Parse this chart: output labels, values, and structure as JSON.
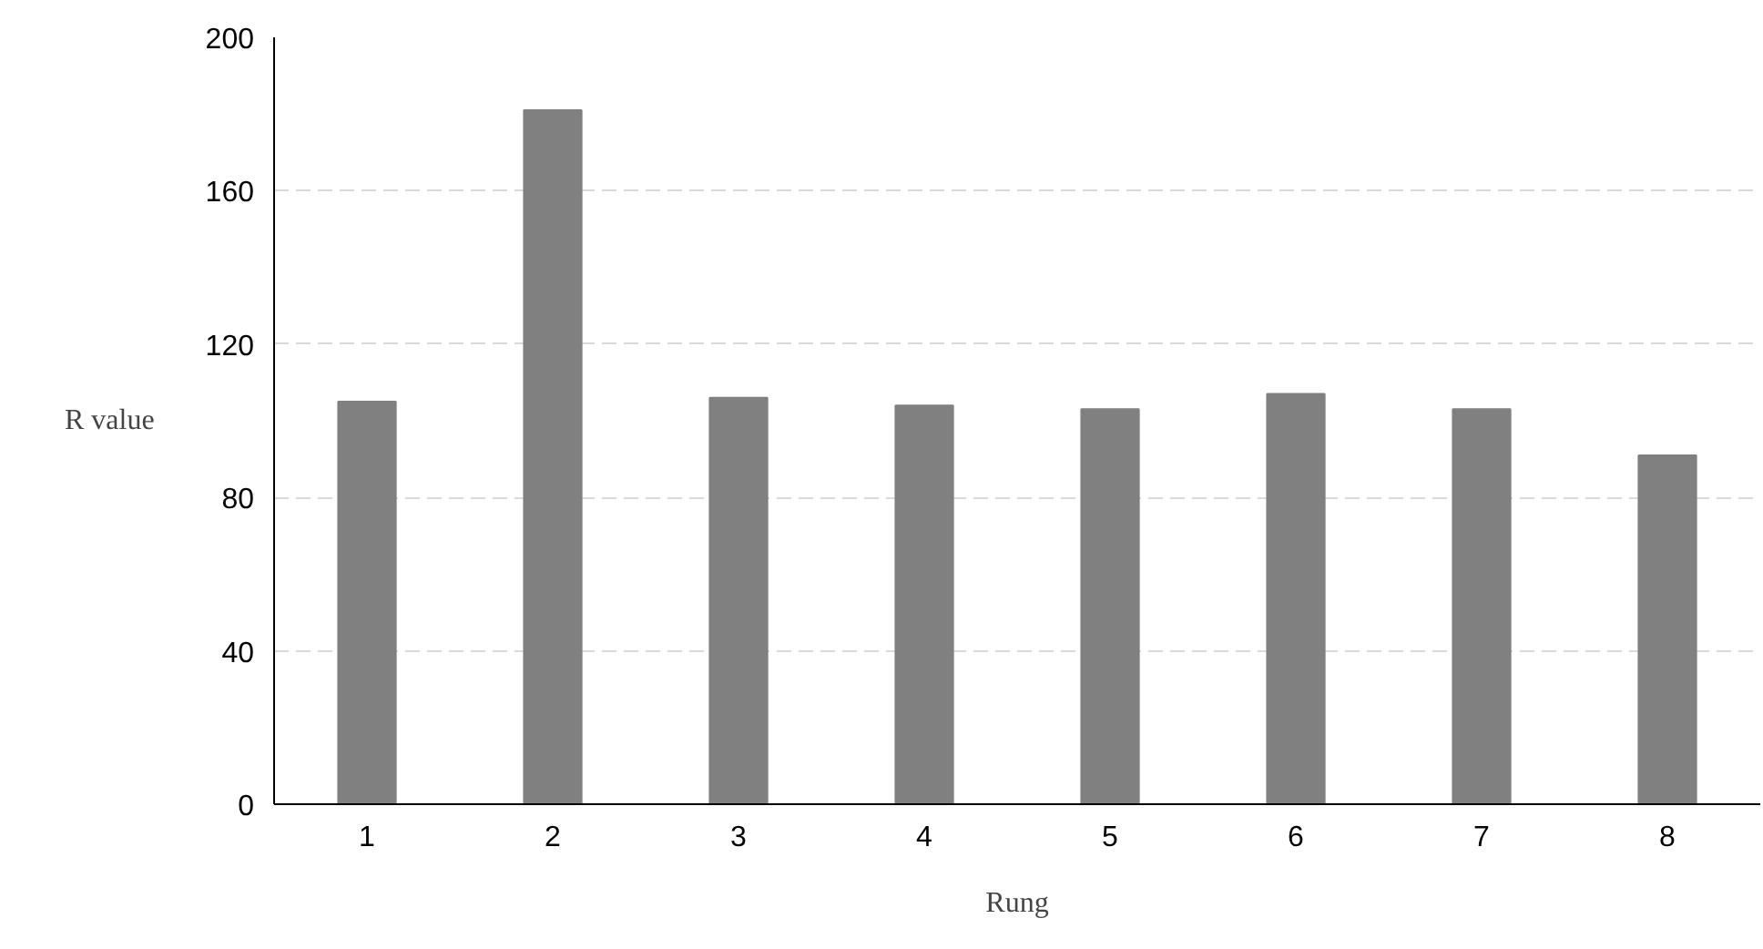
{
  "chart_data": {
    "type": "bar",
    "xlabel": "Rung",
    "ylabel": "R value",
    "categories": [
      "1",
      "2",
      "3",
      "4",
      "5",
      "6",
      "7",
      "8"
    ],
    "values": [
      105,
      181,
      106,
      104,
      103,
      107,
      103,
      91
    ],
    "color": "#808080",
    "ylim": [
      0,
      200
    ],
    "yticks": [
      0,
      40,
      80,
      120,
      160,
      200
    ],
    "grid": "y"
  }
}
